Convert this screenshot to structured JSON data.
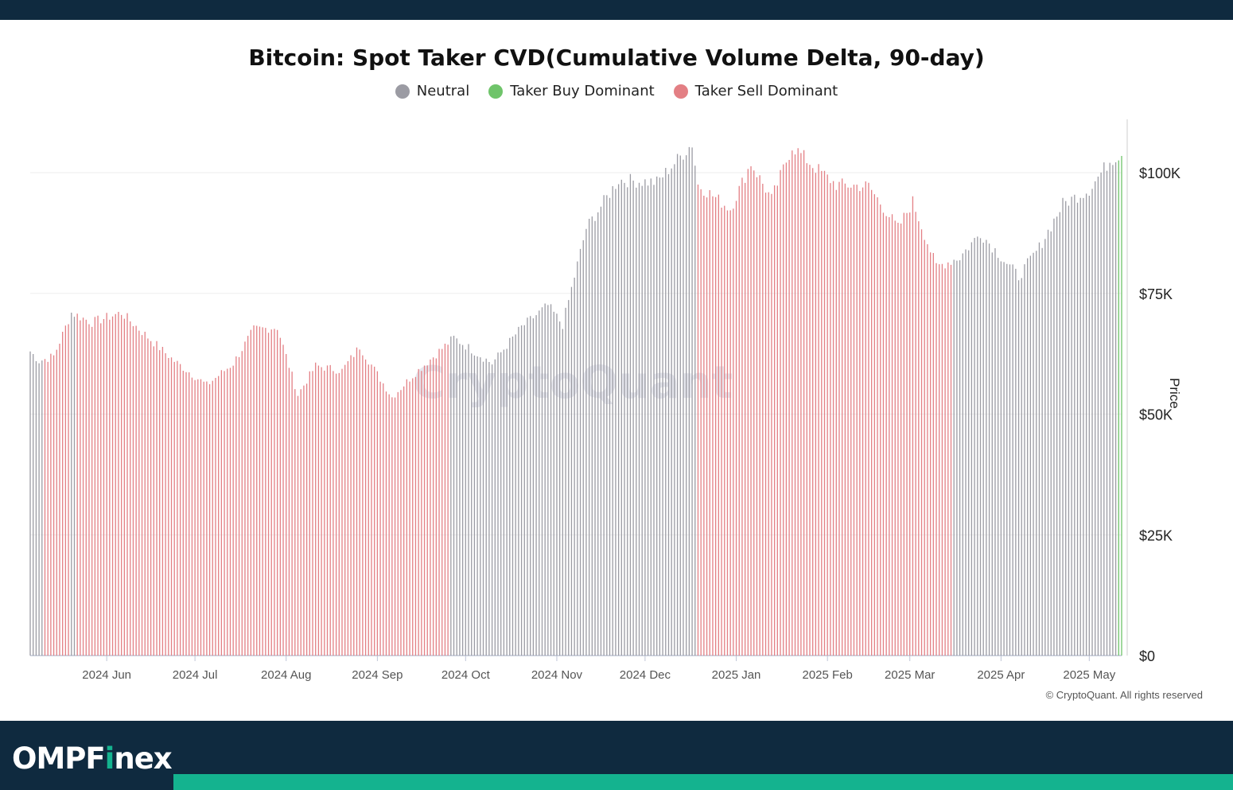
{
  "colors": {
    "neutral": "#9b9ba3",
    "buy": "#6fc46a",
    "sell": "#e37f84",
    "header": "#0f2a3f",
    "accent": "#14b38f"
  },
  "brand": {
    "prefix": "OMPF",
    "accent_letter": "i",
    "suffix": "nex"
  },
  "copyright": "© CryptoQuant. All rights reserved",
  "watermark": "CryptoQuant",
  "chart_data": {
    "type": "bar",
    "title": "Bitcoin: Spot Taker CVD(Cumulative Volume Delta, 90-day)",
    "legend": [
      {
        "name": "Neutral",
        "key": "neutral"
      },
      {
        "name": "Taker Buy Dominant",
        "key": "buy"
      },
      {
        "name": "Taker Sell Dominant",
        "key": "sell"
      }
    ],
    "legend_position": "top-center",
    "ylabel": "Price",
    "yticks": [
      "$0",
      "$25K",
      "$50K",
      "$75K",
      "$100K"
    ],
    "ytick_values": [
      0,
      25000,
      50000,
      75000,
      100000
    ],
    "ylim": [
      0,
      110000
    ],
    "grid": "horizontal",
    "xlim": [
      "2024-05-06",
      "2025-05-12"
    ],
    "xtick_labels": [
      "2024 Jun",
      "2024 Jul",
      "2024 Aug",
      "2024 Sep",
      "2024 Oct",
      "2024 Nov",
      "2024 Dec",
      "2025 Jan",
      "2025 Feb",
      "2025 Mar",
      "2025 Apr",
      "2025 May"
    ],
    "xtick_dates": [
      "2024-06-01",
      "2024-07-01",
      "2024-08-01",
      "2024-09-01",
      "2024-10-01",
      "2024-11-01",
      "2024-12-01",
      "2025-01-01",
      "2025-02-01",
      "2025-03-01",
      "2025-04-01",
      "2025-05-01"
    ],
    "price_anchors": [
      [
        "2024-05-06",
        63000
      ],
      [
        "2024-05-09",
        61000
      ],
      [
        "2024-05-14",
        62000
      ],
      [
        "2024-05-20",
        71000
      ],
      [
        "2024-05-27",
        69000
      ],
      [
        "2024-06-06",
        71000
      ],
      [
        "2024-06-14",
        66500
      ],
      [
        "2024-06-24",
        61000
      ],
      [
        "2024-07-05",
        56000
      ],
      [
        "2024-07-14",
        60500
      ],
      [
        "2024-07-21",
        67500
      ],
      [
        "2024-07-29",
        68000
      ],
      [
        "2024-08-05",
        54000
      ],
      [
        "2024-08-11",
        60000
      ],
      [
        "2024-08-20",
        59000
      ],
      [
        "2024-08-26",
        64000
      ],
      [
        "2024-09-06",
        53500
      ],
      [
        "2024-09-13",
        58000
      ],
      [
        "2024-09-27",
        65800
      ],
      [
        "2024-10-10",
        60500
      ],
      [
        "2024-10-20",
        68000
      ],
      [
        "2024-10-29",
        72500
      ],
      [
        "2024-11-03",
        68500
      ],
      [
        "2024-11-11",
        88500
      ],
      [
        "2024-11-22",
        98500
      ],
      [
        "2024-12-05",
        98000
      ],
      [
        "2024-12-17",
        106000
      ],
      [
        "2024-12-19",
        97500
      ],
      [
        "2024-12-30",
        92500
      ],
      [
        "2025-01-06",
        102000
      ],
      [
        "2025-01-13",
        94500
      ],
      [
        "2025-01-20",
        105500
      ],
      [
        "2025-01-27",
        101500
      ],
      [
        "2025-02-04",
        97500
      ],
      [
        "2025-02-15",
        97200
      ],
      [
        "2025-02-25",
        88500
      ],
      [
        "2025-03-02",
        94000
      ],
      [
        "2025-03-10",
        80500
      ],
      [
        "2025-03-18",
        82500
      ],
      [
        "2025-03-25",
        87500
      ],
      [
        "2025-04-07",
        78500
      ],
      [
        "2025-04-14",
        84500
      ],
      [
        "2025-04-22",
        93500
      ],
      [
        "2025-05-01",
        96500
      ],
      [
        "2025-05-08",
        102500
      ],
      [
        "2025-05-12",
        104000
      ]
    ],
    "regimes": [
      {
        "start": "2024-05-06",
        "end": "2024-05-10",
        "state": "neutral"
      },
      {
        "start": "2024-05-11",
        "end": "2024-05-19",
        "state": "sell"
      },
      {
        "start": "2024-05-20",
        "end": "2024-05-21",
        "state": "neutral"
      },
      {
        "start": "2024-05-22",
        "end": "2024-09-25",
        "state": "sell"
      },
      {
        "start": "2024-09-26",
        "end": "2024-12-18",
        "state": "neutral"
      },
      {
        "start": "2024-12-19",
        "end": "2025-03-15",
        "state": "sell"
      },
      {
        "start": "2025-03-16",
        "end": "2025-05-10",
        "state": "neutral"
      },
      {
        "start": "2025-05-11",
        "end": "2025-05-12",
        "state": "buy"
      }
    ]
  }
}
